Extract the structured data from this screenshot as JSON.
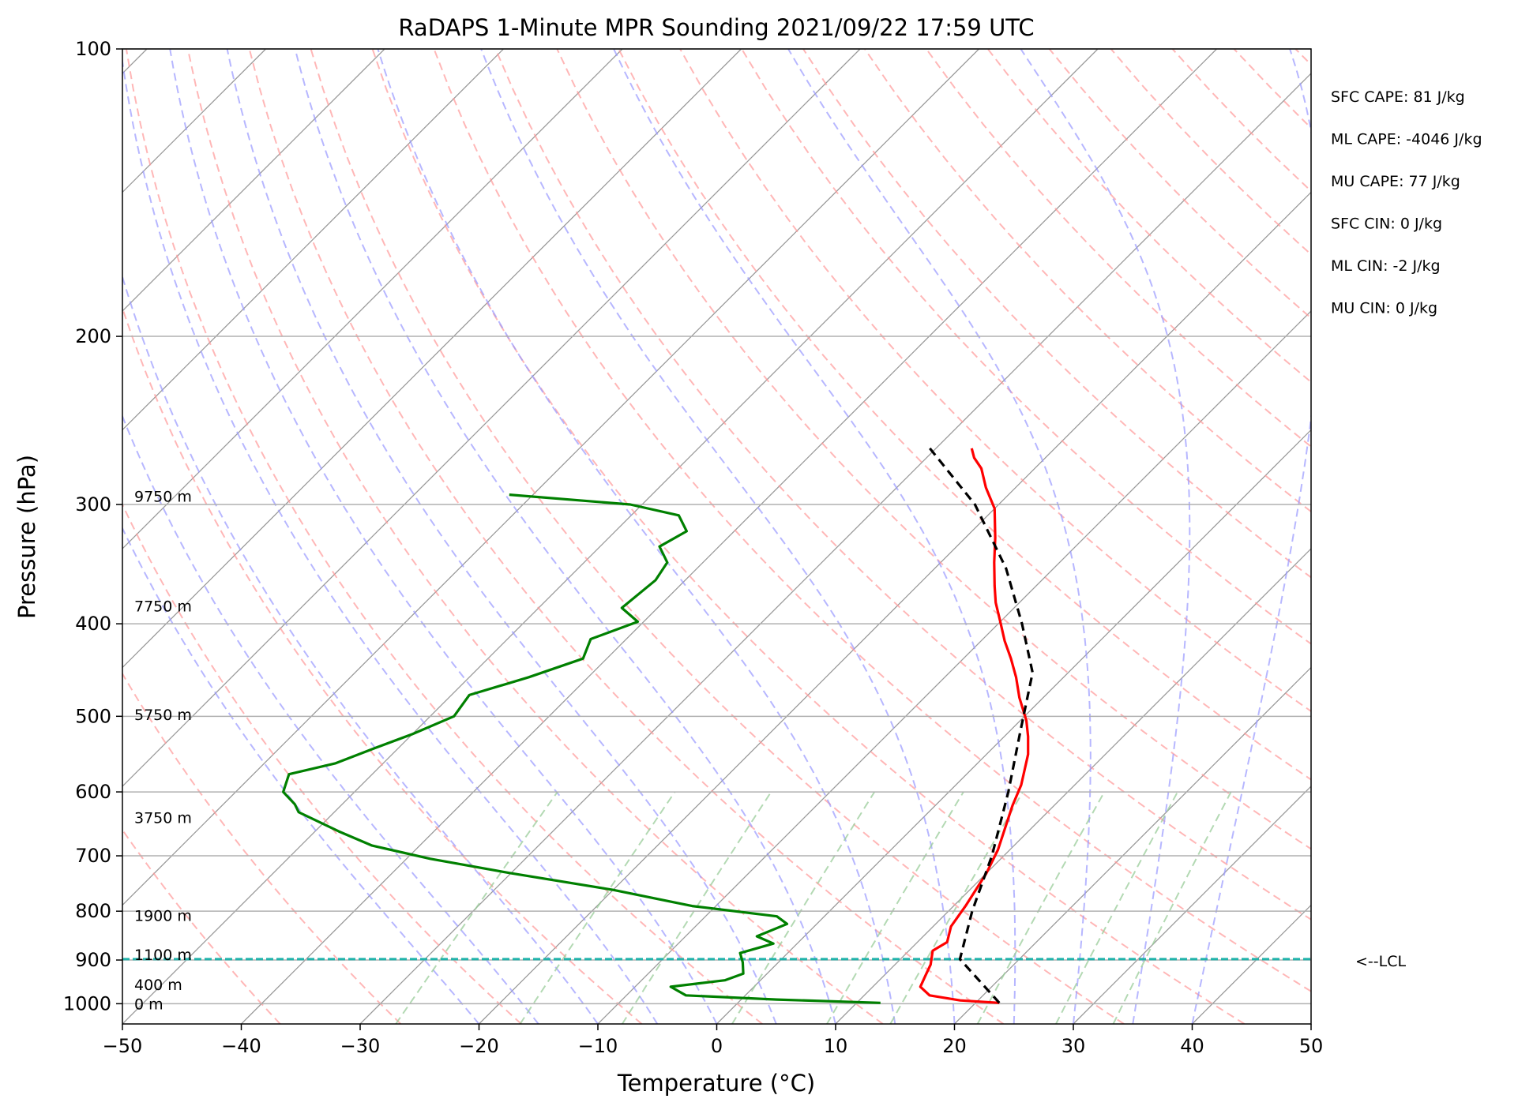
{
  "chart_data": {
    "type": "line",
    "subtype": "skew-T log-P sounding",
    "title": "RaDAPS 1-Minute MPR Sounding 2021/09/22 17:59 UTC",
    "xlabel": "Temperature (°C)",
    "ylabel": "Pressure (hPa)",
    "xlim": [
      -50,
      50
    ],
    "ylim": [
      1050,
      100
    ],
    "y_scale": "log",
    "grid": true,
    "x_ticks": [
      "−50",
      "−40",
      "−30",
      "−20",
      "−10",
      "0",
      "10",
      "20",
      "30",
      "40",
      "50"
    ],
    "x_tick_values": [
      -50,
      -40,
      -30,
      -20,
      -10,
      0,
      10,
      20,
      30,
      40,
      50
    ],
    "y_ticks": [
      "100",
      "200",
      "300",
      "400",
      "500",
      "600",
      "700",
      "800",
      "900",
      "1000"
    ],
    "y_tick_values": [
      100,
      200,
      300,
      400,
      500,
      600,
      700,
      800,
      900,
      1000
    ],
    "series": [
      {
        "role": "temperature",
        "color": "#ff0000",
        "style": "solid",
        "points": [
          [
            22.0,
            998
          ],
          [
            18.5,
            992
          ],
          [
            15.5,
            980
          ],
          [
            14.0,
            960
          ],
          [
            13.5,
            935
          ],
          [
            13.0,
            910
          ],
          [
            12.0,
            880
          ],
          [
            12.5,
            862
          ],
          [
            11.5,
            830
          ],
          [
            11.0,
            790
          ],
          [
            10.0,
            730
          ],
          [
            9.0,
            690
          ],
          [
            6.5,
            620
          ],
          [
            5.5,
            590
          ],
          [
            3.5,
            548
          ],
          [
            2.0,
            525
          ],
          [
            0.5,
            505
          ],
          [
            -2.0,
            478
          ],
          [
            -4.0,
            455
          ],
          [
            -6.0,
            435
          ],
          [
            -8.0,
            417
          ],
          [
            -10.0,
            398
          ],
          [
            -12.0,
            380
          ],
          [
            -13.5,
            365
          ],
          [
            -15.5,
            345
          ],
          [
            -17.5,
            325
          ],
          [
            -20.0,
            303
          ],
          [
            -22.5,
            288
          ],
          [
            -24.5,
            275
          ],
          [
            -26.0,
            268
          ],
          [
            -27.0,
            262
          ]
        ]
      },
      {
        "role": "dewpoint",
        "color": "#008000",
        "style": "solid",
        "points": [
          [
            12.0,
            998
          ],
          [
            3.0,
            990
          ],
          [
            -5.0,
            980
          ],
          [
            -7.0,
            960
          ],
          [
            -3.0,
            945
          ],
          [
            -2.0,
            930
          ],
          [
            -3.0,
            905
          ],
          [
            -4.0,
            885
          ],
          [
            -2.0,
            865
          ],
          [
            -4.0,
            850
          ],
          [
            -2.5,
            825
          ],
          [
            -4.0,
            810
          ],
          [
            -12.0,
            790
          ],
          [
            -20.0,
            760
          ],
          [
            -30.0,
            730
          ],
          [
            -38.0,
            705
          ],
          [
            -44.0,
            683
          ],
          [
            -48.0,
            660
          ],
          [
            -53.0,
            630
          ],
          [
            -54.0,
            618
          ],
          [
            -56.0,
            600
          ],
          [
            -57.0,
            575
          ],
          [
            -54.0,
            560
          ],
          [
            -52.0,
            540
          ],
          [
            -50.0,
            522
          ],
          [
            -48.0,
            500
          ],
          [
            -48.5,
            475
          ],
          [
            -45.0,
            455
          ],
          [
            -42.0,
            435
          ],
          [
            -43.0,
            415
          ],
          [
            -40.5,
            398
          ],
          [
            -43.0,
            385
          ],
          [
            -42.5,
            360
          ],
          [
            -43.0,
            345
          ],
          [
            -45.0,
            332
          ],
          [
            -44.0,
            320
          ],
          [
            -46.0,
            308
          ],
          [
            -51.0,
            300
          ],
          [
            -62.0,
            293
          ]
        ]
      },
      {
        "role": "parcel-profile",
        "color": "#000000",
        "style": "dashed",
        "points": [
          [
            22.0,
            998
          ],
          [
            15.0,
            898
          ],
          [
            12.0,
            800
          ],
          [
            9.0,
            700
          ],
          [
            5.0,
            600
          ],
          [
            1.0,
            520
          ],
          [
            -3.0,
            450
          ],
          [
            -8.0,
            400
          ],
          [
            -14.0,
            350
          ],
          [
            -22.0,
            300
          ],
          [
            -31.0,
            260
          ]
        ]
      }
    ],
    "lcl": {
      "pressure": 898,
      "label": "<--LCL",
      "color": "#20b2aa"
    },
    "height_labels": [
      {
        "text": "0 m",
        "pressure": 1000
      },
      {
        "text": "400 m",
        "pressure": 955
      },
      {
        "text": "1100 m",
        "pressure": 888
      },
      {
        "text": "1900 m",
        "pressure": 808
      },
      {
        "text": "3750 m",
        "pressure": 638
      },
      {
        "text": "5750 m",
        "pressure": 498
      },
      {
        "text": "7750 m",
        "pressure": 383
      },
      {
        "text": "9750 m",
        "pressure": 294
      }
    ],
    "indices": [
      "SFC CAPE: 81 J/kg",
      "ML CAPE: -4046 J/kg",
      "MU CAPE: 77 J/kg",
      "SFC CIN: 0 J/kg",
      "ML CIN: -2 J/kg",
      "MU CIN: 0 J/kg"
    ],
    "background_lines": {
      "isotherms": {
        "color": "#999999",
        "style": "solid"
      },
      "dry_adiabats": {
        "color": "#ff9999",
        "style": "dashed"
      },
      "moist_adiabats": {
        "color": "#9999ff",
        "style": "dashed"
      },
      "mixing_ratio_lines": {
        "color": "#99cc99",
        "style": "dashed"
      }
    }
  }
}
